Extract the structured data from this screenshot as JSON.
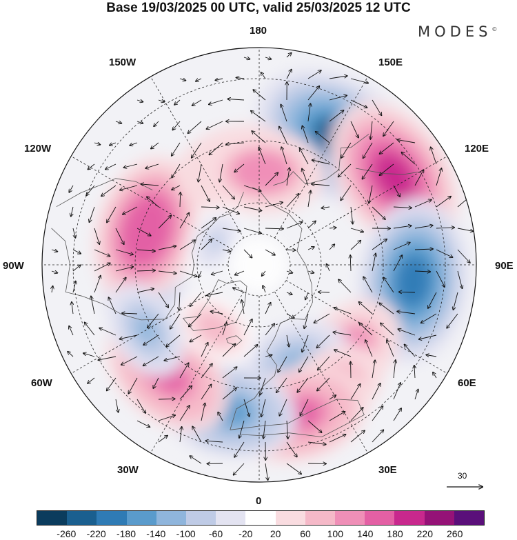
{
  "title": "Base 19/03/2025 00 UTC, valid 25/03/2025 12 UTC",
  "brand": "MODES",
  "brand_mark": "©",
  "longitude_labels": {
    "top": "180",
    "bottom": "0",
    "left": "90W",
    "right": "90E",
    "upper_left_1": "150W",
    "upper_left_2": "120W",
    "lower_left_1": "60W",
    "lower_left_2": "30W",
    "upper_right_1": "150E",
    "upper_right_2": "120E",
    "lower_right_1": "60E",
    "lower_right_2": "30E"
  },
  "reference_vector": {
    "label": "30"
  },
  "colorbar": {
    "colors": [
      "#0b3c5d",
      "#1a5f8f",
      "#2f7bb5",
      "#5a9bcc",
      "#8fb5dc",
      "#bfcbe6",
      "#e3e3f1",
      "#ffffff",
      "#f9dce0",
      "#f5b9c8",
      "#ef8fb7",
      "#e360a4",
      "#c8288d",
      "#951277",
      "#5a0f7a"
    ],
    "ticks": [
      "-260",
      "-220",
      "-180",
      "-140",
      "-100",
      "-60",
      "-20",
      "20",
      "60",
      "100",
      "140",
      "180",
      "220",
      "260"
    ]
  },
  "anomaly_centers": [
    {
      "lon": 148,
      "lat": 42,
      "value": -220
    },
    {
      "lon": 123,
      "lat": 38,
      "value": 200
    },
    {
      "lon": 84,
      "lat": 40,
      "value": -200
    },
    {
      "lon": 45,
      "lat": 50,
      "value": 140
    },
    {
      "lon": 20,
      "lat": 57,
      "value": -120
    },
    {
      "lon": 30,
      "lat": 44,
      "value": 120
    },
    {
      "lon": 15,
      "lat": 40,
      "value": 160
    },
    {
      "lon": -12,
      "lat": 42,
      "value": -160
    },
    {
      "lon": -40,
      "lat": 44,
      "value": 160
    },
    {
      "lon": -80,
      "lat": 52,
      "value": -140
    },
    {
      "lon": -107,
      "lat": 52,
      "value": 180
    },
    {
      "lon": -168,
      "lat": 58,
      "value": 140
    },
    {
      "lon": 178,
      "lat": 60,
      "value": 140
    },
    {
      "lon": -35,
      "lat": 65,
      "value": 80
    },
    {
      "lon": -60,
      "lat": 48,
      "value": -100
    },
    {
      "lon": -118,
      "lat": 74,
      "value": -60
    }
  ]
}
